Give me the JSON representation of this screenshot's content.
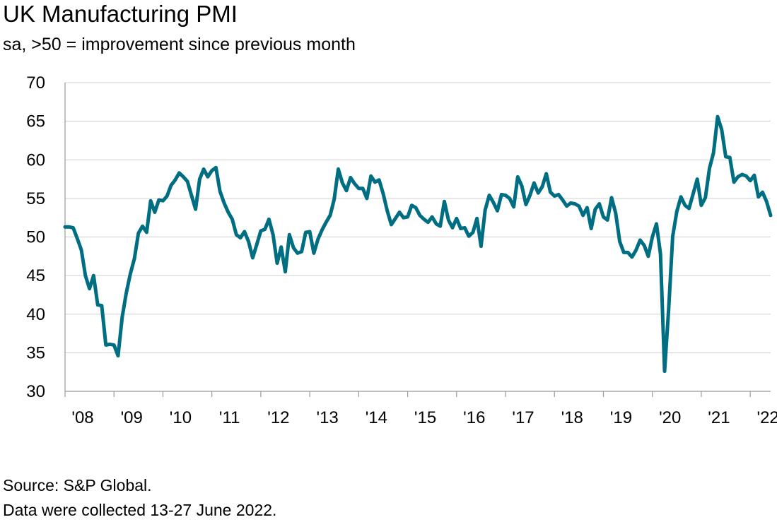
{
  "header": {
    "title": "UK Manufacturing PMI",
    "subtitle": "sa, >50 = improvement since previous month"
  },
  "footer": {
    "source": "Source: S&P Global.",
    "note": "Data were collected 13-27 June 2022."
  },
  "chart_data": {
    "type": "line",
    "title": "UK Manufacturing PMI",
    "subtitle": "sa, >50 = improvement since previous month",
    "xlabel": "",
    "ylabel": "",
    "ylim": [
      30,
      70
    ],
    "yticks": [
      30,
      35,
      40,
      45,
      50,
      55,
      60,
      65,
      70
    ],
    "xlim": [
      "2008-01",
      "2022-06"
    ],
    "xticks": [
      "'08",
      "'09",
      "'10",
      "'11",
      "'12",
      "'13",
      "'14",
      "'15",
      "'16",
      "'17",
      "'18",
      "'19",
      "'20",
      "'21",
      "'22"
    ],
    "grid": "horizontal",
    "line_color": "#006e82",
    "series": [
      {
        "start": "2008-01",
        "frequency": "monthly",
        "values": [
          51.3,
          51.3,
          51.2,
          49.8,
          48.3,
          45.0,
          43.3,
          45.0,
          41.2,
          41.1,
          36.0,
          36.1,
          36.0,
          34.6,
          39.6,
          42.7,
          45.2,
          47.2,
          50.5,
          51.4,
          50.6,
          54.7,
          53.2,
          54.8,
          54.7,
          55.3,
          56.7,
          57.4,
          58.3,
          57.8,
          57.2,
          55.4,
          53.6,
          57.5,
          58.8,
          57.8,
          58.6,
          59.0,
          55.9,
          54.4,
          53.2,
          52.3,
          50.3,
          49.9,
          50.7,
          49.4,
          47.3,
          49.0,
          50.8,
          51.0,
          52.3,
          50.3,
          46.6,
          48.7,
          45.5,
          50.3,
          48.6,
          47.9,
          48.1,
          50.6,
          50.7,
          47.9,
          49.7,
          50.9,
          51.9,
          52.8,
          54.9,
          58.8,
          57.0,
          56.0,
          57.7,
          56.9,
          56.3,
          56.3,
          55.0,
          57.9,
          57.1,
          57.4,
          55.6,
          53.4,
          51.6,
          52.4,
          53.2,
          52.5,
          52.6,
          54.1,
          53.8,
          52.8,
          52.3,
          51.9,
          52.6,
          51.7,
          51.4,
          54.6,
          52.2,
          51.2,
          52.4,
          51.1,
          51.2,
          50.1,
          50.6,
          52.4,
          48.8,
          53.5,
          55.4,
          54.5,
          53.4,
          55.5,
          55.4,
          55.0,
          53.9,
          57.8,
          56.6,
          54.2,
          55.4,
          57.0,
          55.7,
          56.5,
          58.2,
          55.8,
          55.3,
          55.5,
          54.8,
          54.0,
          54.4,
          54.3,
          54.0,
          52.8,
          53.8,
          51.1,
          53.6,
          54.3,
          52.6,
          52.2,
          55.1,
          53.1,
          49.4,
          48.0,
          48.0,
          47.4,
          48.3,
          49.6,
          48.9,
          47.5,
          50.0,
          51.7,
          47.8,
          32.6,
          40.7,
          50.1,
          53.3,
          55.2,
          54.1,
          53.7,
          55.6,
          57.5,
          54.1,
          55.1,
          58.9,
          60.9,
          65.6,
          63.9,
          60.4,
          60.3,
          57.1,
          57.8,
          58.1,
          57.9,
          57.3,
          58.0,
          55.2,
          55.8,
          54.6,
          52.8
        ]
      }
    ]
  }
}
